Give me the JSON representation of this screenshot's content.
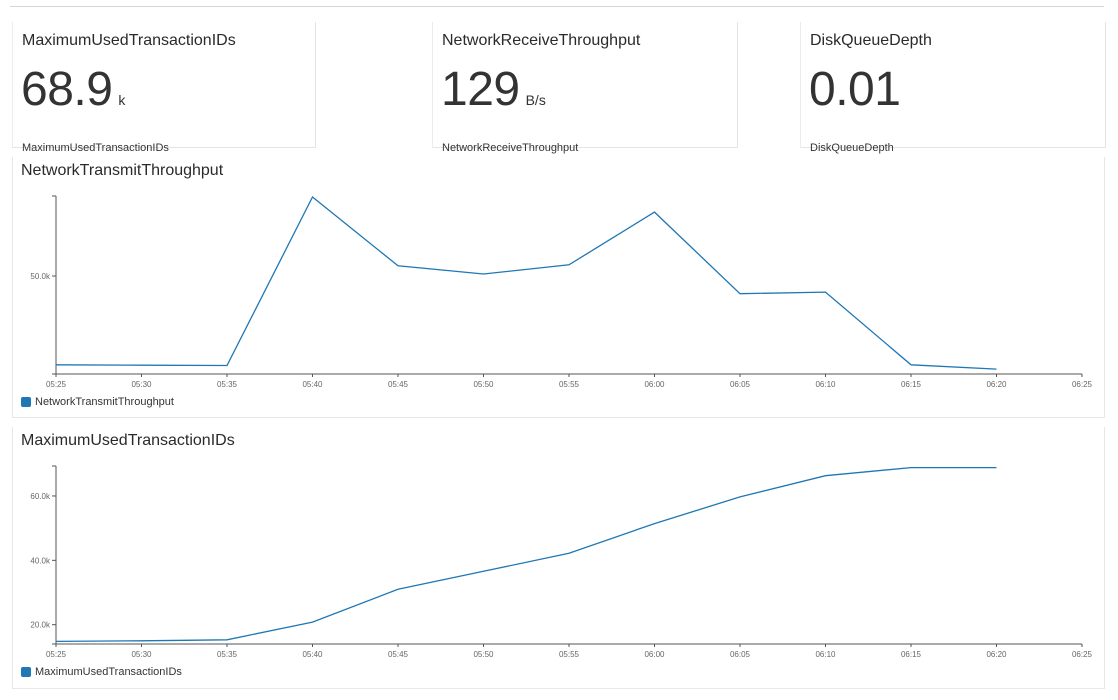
{
  "widgets": [
    {
      "title": "MaximumUsedTransactionIDs",
      "value": "68.9",
      "unit": "k",
      "label": "MaximumUsedTransactionIDs"
    },
    {
      "title": "NetworkReceiveThroughput",
      "value": "129",
      "unit": "B/s",
      "label": "NetworkReceiveThroughput"
    },
    {
      "title": "DiskQueueDepth",
      "value": "0.01",
      "unit": "",
      "label": "DiskQueueDepth"
    }
  ],
  "colors": {
    "series": "#1f77b4",
    "axis": "#555555",
    "text": "#333333"
  },
  "chart_data": [
    {
      "type": "line",
      "title": "NetworkTransmitThroughput",
      "x": [
        "05:25",
        "05:30",
        "05:35",
        "05:40",
        "05:45",
        "05:50",
        "05:55",
        "06:00",
        "06:05",
        "06:10",
        "06:15",
        "06:20"
      ],
      "x_ticks": [
        "05:25",
        "05:30",
        "05:35",
        "05:40",
        "05:45",
        "05:50",
        "05:55",
        "06:00",
        "06:05",
        "06:10",
        "06:15",
        "06:20",
        "06:25"
      ],
      "y_ticks": [
        "50.0k"
      ],
      "ylim": [
        25000,
        79000
      ],
      "grid": false,
      "legend": "bottom-left",
      "series": [
        {
          "name": "NetworkTransmitThroughput",
          "values": [
            27800,
            27700,
            27600,
            79000,
            58000,
            55500,
            58300,
            74400,
            49500,
            50000,
            27800,
            26500
          ]
        }
      ]
    },
    {
      "type": "line",
      "title": "MaximumUsedTransactionIDs",
      "x": [
        "05:25",
        "05:30",
        "05:35",
        "05:40",
        "05:45",
        "05:50",
        "05:55",
        "06:00",
        "06:05",
        "06:10",
        "06:15",
        "06:20"
      ],
      "x_ticks": [
        "05:25",
        "05:30",
        "05:35",
        "05:40",
        "05:45",
        "05:50",
        "05:55",
        "06:00",
        "06:05",
        "06:10",
        "06:15",
        "06:20",
        "06:25"
      ],
      "y_ticks": [
        "20.0k",
        "40.0k",
        "60.0k"
      ],
      "y_tick_values": [
        20000,
        40000,
        60000
      ],
      "ylim": [
        14000,
        69000
      ],
      "grid": false,
      "legend": "bottom-left",
      "series": [
        {
          "name": "MaximumUsedTransactionIDs",
          "values": [
            14800,
            15000,
            15300,
            20800,
            31000,
            36600,
            42200,
            51400,
            59700,
            66300,
            68800,
            68800
          ]
        }
      ]
    }
  ]
}
